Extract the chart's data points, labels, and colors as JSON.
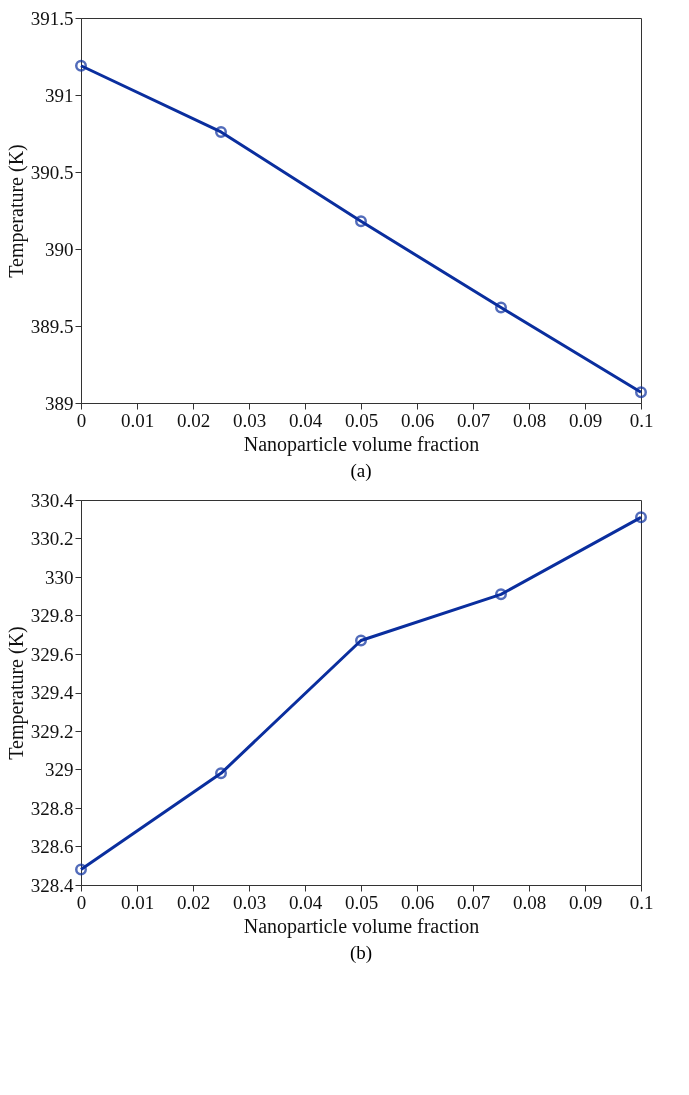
{
  "chart_data": [
    {
      "type": "line",
      "x": [
        0,
        0.025,
        0.05,
        0.075,
        0.1
      ],
      "xlabel": "Nanoparticle volume fraction",
      "ylabel": "Temperature (K)",
      "marker": "circle",
      "line_style": "solid",
      "grid": false,
      "series": [
        {
          "color": "#0a2e9e",
          "values": [
            391.19,
            390.76,
            390.18,
            389.62,
            389.07
          ]
        }
      ],
      "xlim": [
        0,
        0.1
      ],
      "xticks": [
        0,
        0.01,
        0.02,
        0.03,
        0.04,
        0.05,
        0.06,
        0.07,
        0.08,
        0.09,
        0.1
      ],
      "ylim": [
        389,
        391.5
      ],
      "yticks": [
        389,
        389.5,
        390,
        390.5,
        391,
        391.5
      ],
      "annotations": [
        "(a)"
      ]
    },
    {
      "type": "line",
      "x": [
        0,
        0.025,
        0.05,
        0.075,
        0.1
      ],
      "xlabel": "Nanoparticle volume fraction",
      "ylabel": "Temperature (K)",
      "marker": "circle",
      "line_style": "solid",
      "grid": false,
      "series": [
        {
          "color": "#0a2e9e",
          "values": [
            328.48,
            328.98,
            329.67,
            329.91,
            330.31
          ]
        }
      ],
      "xlim": [
        0,
        0.1
      ],
      "xticks": [
        0,
        0.01,
        0.02,
        0.03,
        0.04,
        0.05,
        0.06,
        0.07,
        0.08,
        0.09,
        0.1
      ],
      "ylim": [
        328.4,
        330.4
      ],
      "yticks": [
        328.4,
        328.6,
        328.8,
        329,
        329.2,
        329.4,
        329.6,
        329.8,
        330,
        330.2,
        330.4
      ],
      "annotations": [
        "(b)"
      ]
    }
  ]
}
